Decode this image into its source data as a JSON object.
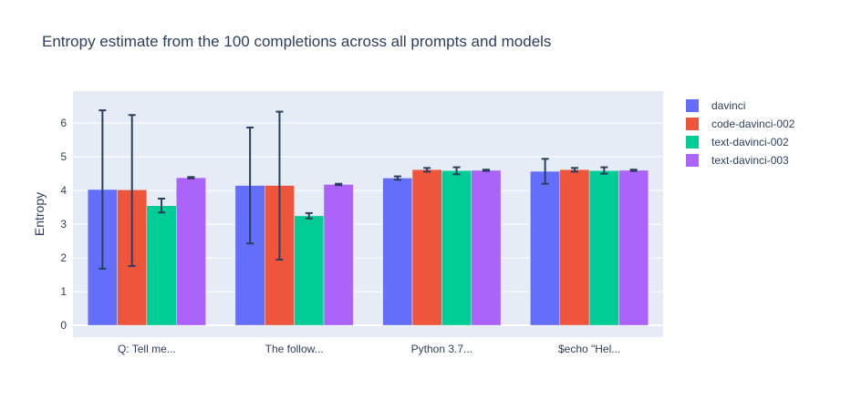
{
  "chart_data": {
    "type": "bar",
    "title": "Entropy estimate from the 100 completions across all prompts and models",
    "xlabel": "",
    "ylabel": "Entropy",
    "ylim": [
      -0.35,
      6.95
    ],
    "yticks": [
      0,
      1,
      2,
      3,
      4,
      5,
      6
    ],
    "grid": true,
    "legend_position": "right",
    "categories": [
      "Q: Tell me...",
      "The follow...",
      "Python 3.7...",
      "$echo \"Hel..."
    ],
    "series": [
      {
        "name": "davinci",
        "color": "#636efa",
        "values": [
          4.03,
          4.15,
          4.37,
          4.57
        ],
        "error_low": [
          1.68,
          2.43,
          4.32,
          4.2
        ],
        "error_high": [
          6.38,
          5.87,
          4.42,
          4.94
        ]
      },
      {
        "name": "code-davinci-002",
        "color": "#ef553b",
        "values": [
          4.02,
          4.15,
          4.62,
          4.62
        ],
        "error_low": [
          1.76,
          1.95,
          4.56,
          4.56
        ],
        "error_high": [
          6.24,
          6.34,
          4.67,
          4.67
        ]
      },
      {
        "name": "text-davinci-002",
        "color": "#00cc96",
        "values": [
          3.55,
          3.25,
          4.59,
          4.59
        ],
        "error_low": [
          3.35,
          3.17,
          4.48,
          4.5
        ],
        "error_high": [
          3.76,
          3.33,
          4.69,
          4.69
        ]
      },
      {
        "name": "text-davinci-003",
        "color": "#ab63fa",
        "values": [
          4.38,
          4.18,
          4.6,
          4.6
        ],
        "error_low": [
          4.36,
          4.16,
          4.58,
          4.58
        ],
        "error_high": [
          4.4,
          4.2,
          4.62,
          4.62
        ]
      }
    ]
  }
}
